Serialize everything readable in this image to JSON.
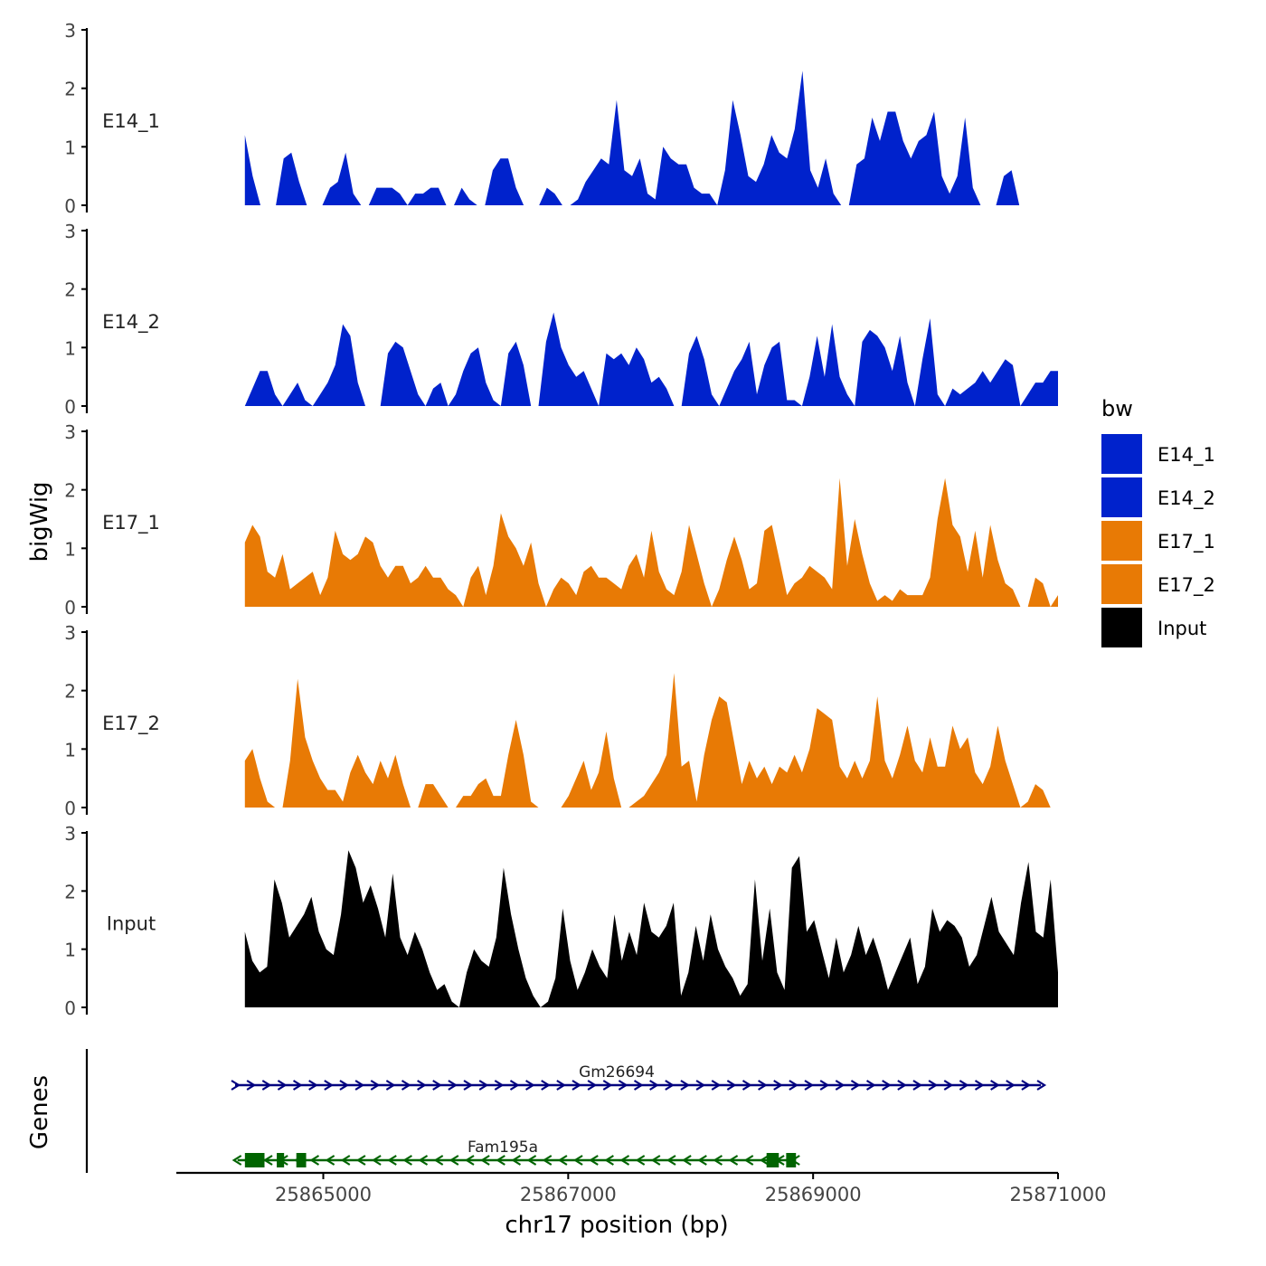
{
  "chart_data": {
    "type": "area",
    "genome_region": "chr17",
    "xlabel": "chr17 position (bp)",
    "ylabel": "bigWig",
    "genes_label": "Genes",
    "xlim": [
      25863800,
      25871000
    ],
    "x_ticks": [
      25865000,
      25867000,
      25869000,
      25871000
    ],
    "x_tick_labels": [
      "25865000",
      "25867000",
      "25869000",
      "25871000"
    ],
    "y_ticks": [
      0,
      1,
      2,
      3
    ],
    "y_tick_labels": [
      "0",
      "1",
      "2",
      "3"
    ],
    "ylim": [
      0,
      3
    ],
    "legend": {
      "title": "bw",
      "position": "right",
      "entries": [
        {
          "name": "E14_1",
          "color": "#0022CC"
        },
        {
          "name": "E14_2",
          "color": "#0022CC"
        },
        {
          "name": "E17_1",
          "color": "#E87A05"
        },
        {
          "name": "E17_2",
          "color": "#E87A05"
        },
        {
          "name": "Input",
          "color": "#000000"
        }
      ]
    },
    "series": [
      {
        "name": "E14_1",
        "color": "#0022CC",
        "x_start": 25864360,
        "x_end": 25871000,
        "values": [
          1.2,
          0.5,
          0,
          0,
          0,
          0.8,
          0.9,
          0.4,
          0,
          0,
          0,
          0.3,
          0.4,
          0.9,
          0.2,
          0,
          0,
          0.3,
          0.3,
          0.3,
          0.2,
          0,
          0.2,
          0.2,
          0.3,
          0.3,
          0,
          0,
          0.3,
          0.1,
          0,
          0,
          0.6,
          0.8,
          0.8,
          0.3,
          0,
          0,
          0,
          0.3,
          0.2,
          0,
          0,
          0.1,
          0.4,
          0.6,
          0.8,
          0.7,
          1.8,
          0.6,
          0.5,
          0.8,
          0.2,
          0.1,
          1,
          0.8,
          0.7,
          0.7,
          0.3,
          0.2,
          0.2,
          0,
          0.6,
          1.8,
          1.2,
          0.5,
          0.4,
          0.7,
          1.2,
          0.9,
          0.8,
          1.3,
          2.3,
          0.6,
          0.3,
          0.8,
          0.2,
          0,
          0,
          0.7,
          0.8,
          1.5,
          1.1,
          1.6,
          1.6,
          1.1,
          0.8,
          1.1,
          1.2,
          1.6,
          0.5,
          0.2,
          0.5,
          1.5,
          0.3,
          0,
          0,
          0,
          0.5,
          0.6,
          0,
          0,
          0,
          0,
          0,
          0
        ]
      },
      {
        "name": "E14_2",
        "color": "#0022CC",
        "x_start": 25864360,
        "x_end": 25871000,
        "values": [
          0,
          0.3,
          0.6,
          0.6,
          0.2,
          0,
          0.2,
          0.4,
          0.1,
          0,
          0.2,
          0.4,
          0.7,
          1.4,
          1.2,
          0.4,
          0,
          0,
          0,
          0.9,
          1.1,
          1,
          0.6,
          0.2,
          0,
          0.3,
          0.4,
          0,
          0.2,
          0.6,
          0.9,
          1,
          0.4,
          0.1,
          0,
          0.9,
          1.1,
          0.7,
          0,
          0,
          1.1,
          1.6,
          1,
          0.7,
          0.5,
          0.6,
          0.3,
          0,
          0.9,
          0.8,
          0.9,
          0.7,
          1,
          0.8,
          0.4,
          0.5,
          0.3,
          0,
          0,
          0.9,
          1.2,
          0.8,
          0.2,
          0,
          0.3,
          0.6,
          0.8,
          1.1,
          0.2,
          0.7,
          1,
          1.1,
          0.1,
          0.1,
          0,
          0.5,
          1.2,
          0.5,
          1.4,
          0.5,
          0.2,
          0,
          1.1,
          1.3,
          1.2,
          1,
          0.6,
          1.2,
          0.4,
          0,
          0.8,
          1.5,
          0.2,
          0,
          0.3,
          0.2,
          0.3,
          0.4,
          0.6,
          0.4,
          0.6,
          0.8,
          0.7,
          0,
          0.2,
          0.4,
          0.4,
          0.6,
          0.6
        ]
      },
      {
        "name": "E17_1",
        "color": "#E87A05",
        "x_start": 25864360,
        "x_end": 25871000,
        "values": [
          1.1,
          1.4,
          1.2,
          0.6,
          0.5,
          0.9,
          0.3,
          0.4,
          0.5,
          0.6,
          0.2,
          0.5,
          1.3,
          0.9,
          0.8,
          0.9,
          1.2,
          1.1,
          0.7,
          0.5,
          0.7,
          0.7,
          0.4,
          0.5,
          0.7,
          0.5,
          0.5,
          0.3,
          0.2,
          0,
          0.5,
          0.7,
          0.2,
          0.7,
          1.6,
          1.2,
          1,
          0.7,
          1.1,
          0.4,
          0,
          0.3,
          0.5,
          0.4,
          0.2,
          0.6,
          0.7,
          0.5,
          0.5,
          0.4,
          0.3,
          0.7,
          0.9,
          0.5,
          1.3,
          0.6,
          0.3,
          0.2,
          0.6,
          1.4,
          0.9,
          0.4,
          0,
          0.3,
          0.8,
          1.2,
          0.8,
          0.3,
          0.4,
          1.3,
          1.4,
          0.8,
          0.2,
          0.4,
          0.5,
          0.7,
          0.6,
          0.5,
          0.3,
          2.2,
          0.7,
          1.5,
          0.9,
          0.4,
          0.1,
          0.2,
          0.1,
          0.3,
          0.2,
          0.2,
          0.2,
          0.5,
          1.5,
          2.2,
          1.4,
          1.2,
          0.6,
          1.3,
          0.5,
          1.4,
          0.8,
          0.4,
          0.3,
          0,
          0,
          0.5,
          0.4,
          0,
          0.2
        ]
      },
      {
        "name": "E17_2",
        "color": "#E87A05",
        "x_start": 25864360,
        "x_end": 25871000,
        "values": [
          0.8,
          1,
          0.5,
          0.1,
          0,
          0,
          0.8,
          2.2,
          1.2,
          0.8,
          0.5,
          0.3,
          0.3,
          0.1,
          0.6,
          0.9,
          0.6,
          0.4,
          0.8,
          0.5,
          0.9,
          0.4,
          0,
          0,
          0.4,
          0.4,
          0.2,
          0,
          0,
          0.2,
          0.2,
          0.4,
          0.5,
          0.2,
          0.2,
          0.9,
          1.5,
          0.9,
          0.1,
          0,
          0,
          0,
          0,
          0.2,
          0.5,
          0.8,
          0.3,
          0.6,
          1.3,
          0.5,
          0,
          0,
          0.1,
          0.2,
          0.4,
          0.6,
          0.9,
          2.3,
          0.7,
          0.8,
          0.1,
          0.9,
          1.5,
          1.9,
          1.8,
          1.1,
          0.4,
          0.8,
          0.5,
          0.7,
          0.4,
          0.7,
          0.6,
          0.9,
          0.6,
          1,
          1.7,
          1.6,
          1.5,
          0.7,
          0.5,
          0.8,
          0.5,
          0.8,
          1.9,
          0.8,
          0.5,
          0.9,
          1.4,
          0.8,
          0.6,
          1.2,
          0.7,
          0.7,
          1.4,
          1,
          1.2,
          0.6,
          0.4,
          0.7,
          1.4,
          0.8,
          0.4,
          0,
          0.1,
          0.4,
          0.3,
          0,
          0
        ]
      },
      {
        "name": "Input",
        "color": "#000000",
        "x_start": 25864360,
        "x_end": 25871000,
        "values": [
          1.3,
          0.8,
          0.6,
          0.7,
          2.2,
          1.8,
          1.2,
          1.4,
          1.6,
          1.9,
          1.3,
          1,
          0.9,
          1.6,
          2.7,
          2.4,
          1.8,
          2.1,
          1.7,
          1.2,
          2.3,
          1.2,
          0.9,
          1.3,
          1,
          0.6,
          0.3,
          0.4,
          0.1,
          0,
          0.6,
          1,
          0.8,
          0.7,
          1.2,
          2.4,
          1.6,
          1,
          0.5,
          0.2,
          0,
          0.1,
          0.5,
          1.7,
          0.8,
          0.3,
          0.6,
          1,
          0.7,
          0.5,
          1.6,
          0.8,
          1.3,
          0.9,
          1.8,
          1.3,
          1.2,
          1.4,
          1.8,
          0.2,
          0.6,
          1.4,
          0.8,
          1.6,
          1,
          0.7,
          0.5,
          0.2,
          0.4,
          2.2,
          0.8,
          1.7,
          0.6,
          0.3,
          2.4,
          2.6,
          1.3,
          1.5,
          1,
          0.5,
          1.2,
          0.6,
          0.9,
          1.4,
          0.9,
          1.2,
          0.8,
          0.3,
          0.6,
          0.9,
          1.2,
          0.4,
          0.7,
          1.7,
          1.3,
          1.5,
          1.4,
          1.2,
          0.7,
          0.9,
          1.4,
          1.9,
          1.3,
          1.1,
          0.9,
          1.8,
          2.5,
          1.3,
          1.2,
          2.2,
          0.6
        ]
      }
    ],
    "genes": [
      {
        "name": "Gm26694",
        "color": "#00007F",
        "strand": "+",
        "start": 25864280,
        "end": 25870860,
        "exons": []
      },
      {
        "name": "Fam195a",
        "color": "#006400",
        "strand": "-",
        "start": 25864300,
        "end": 25868860,
        "exons": [
          [
            25864360,
            25864520
          ],
          [
            25864620,
            25864680
          ],
          [
            25864780,
            25864860
          ],
          [
            25868620,
            25868720
          ],
          [
            25868780,
            25868860
          ]
        ]
      }
    ]
  }
}
